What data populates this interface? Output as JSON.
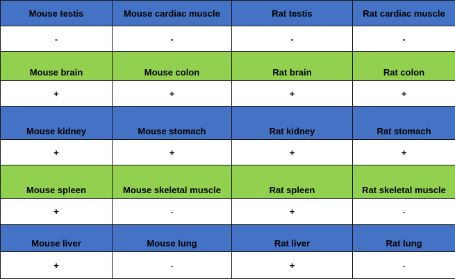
{
  "colors": {
    "blue_band": "#4472c4",
    "green_band": "#92d050",
    "result_band": "#ffffff",
    "border": "#1a1a1a"
  },
  "groups": [
    {
      "band_color": "blue",
      "tissues": [
        "Mouse testis",
        "Mouse cardiac muscle",
        "Rat testis",
        "Rat cardiac muscle"
      ],
      "results": [
        "-",
        "-",
        "-",
        "-"
      ]
    },
    {
      "band_color": "green",
      "tissues": [
        "Mouse brain",
        "Mouse colon",
        "Rat brain",
        "Rat colon"
      ],
      "results": [
        "+",
        "+",
        "+",
        "+"
      ]
    },
    {
      "band_color": "blue",
      "tissues": [
        "Mouse kidney",
        "Mouse stomach",
        "Rat kidney",
        "Rat stomach"
      ],
      "results": [
        "+",
        "+",
        "+",
        "+"
      ]
    },
    {
      "band_color": "green",
      "tissues": [
        "Mouse spleen",
        "Mouse skeletal muscle",
        "Rat spleen",
        "Rat skeletal muscle"
      ],
      "results": [
        "+",
        "-",
        "+",
        "-"
      ]
    },
    {
      "band_color": "blue",
      "tissues": [
        "Mouse liver",
        "Mouse lung",
        "Rat liver",
        "Rat lung"
      ],
      "results": [
        "+",
        "-",
        "+",
        "-"
      ]
    }
  ]
}
